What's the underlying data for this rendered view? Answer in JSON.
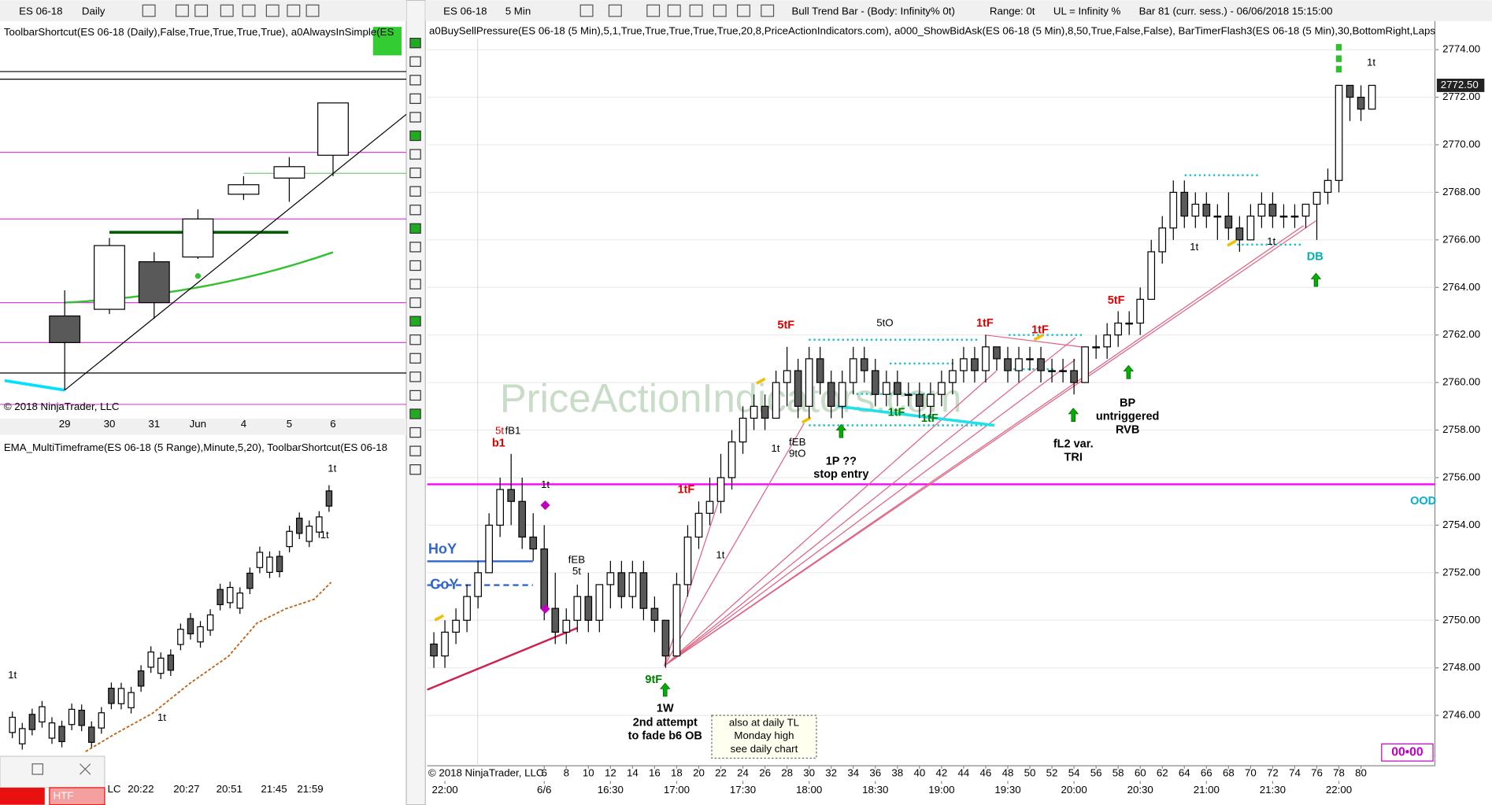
{
  "left_chart": {
    "symbol": "ES 06-18",
    "interval": "Daily",
    "indicators": "ToolbarShortcut(ES 06-18 (Daily),False,True,True,True,True),  a0AlwaysInSimple(ES",
    "copyright": "© 2018 NinjaTrader, LLC",
    "x_labels": [
      "29",
      "30",
      "31",
      "Jun",
      "4",
      "5",
      "6"
    ]
  },
  "range_chart": {
    "indicators": "EMA_MultiTimeframe(ES 06-18 (5 Range),Minute,5,20),  ToolbarShortcut(ES 06-18",
    "x_labels": [
      "LC",
      "20:22",
      "20:27",
      "20:51",
      "21:45",
      "21:59"
    ],
    "annotations": [
      "1t",
      "1t",
      "1t",
      "1t"
    ],
    "button": "HTF"
  },
  "chart_data": {
    "type": "candlestick",
    "symbol": "ES 06-18",
    "interval": "5 Min",
    "title": "Bull Trend Bar - (Body: Infinity%  0t)",
    "status": [
      "Range: 0t",
      "UL = Infinity %",
      "Bar 81 (curr. sess.) - 06/06/2018 15:15:00"
    ],
    "indicators": "a0BuySellPressure(ES 06-18 (5 Min),5,1,True,True,True,True,True,20,8,PriceActionIndicators.com),  a000_ShowBidAsk(ES 06-18 (5 Min),8,50,True,False,False),  BarTimerFlash3(ES 06-18 (5 Min),30,BottomRight,Laps",
    "copyright": "© 2018 NinjaTrader, LLC",
    "watermark": "PriceActionIndicators.com",
    "x": [
      -4,
      -3,
      -2,
      -1,
      0,
      1,
      2,
      3,
      4,
      5,
      6,
      7,
      8,
      9,
      10,
      11,
      12,
      13,
      14,
      15,
      16,
      17,
      18,
      19,
      20,
      21,
      22,
      23,
      24,
      25,
      26,
      27,
      28,
      29,
      30,
      31,
      32,
      33,
      34,
      35,
      36,
      37,
      38,
      39,
      40,
      41,
      42,
      43,
      44,
      45,
      46,
      47,
      48,
      49,
      50,
      51,
      52,
      53,
      54,
      55,
      56,
      57,
      58,
      59,
      60,
      61,
      62,
      63,
      64,
      65,
      66,
      67,
      68,
      69,
      70,
      71,
      72,
      73,
      74,
      75,
      76,
      77,
      78,
      79,
      80,
      81
    ],
    "ohlc": [
      [
        2749,
        2749.5,
        2748,
        2748.5
      ],
      [
        2748.5,
        2750,
        2748,
        2749.5
      ],
      [
        2749.5,
        2750.5,
        2749,
        2750
      ],
      [
        2750,
        2751.5,
        2749.5,
        2751
      ],
      [
        2751,
        2752.5,
        2750.5,
        2752
      ],
      [
        2752,
        2754.5,
        2752,
        2754
      ],
      [
        2754,
        2756,
        2753.5,
        2755.5
      ],
      [
        2755.5,
        2757,
        2754,
        2755
      ],
      [
        2755,
        2756,
        2753,
        2753.5
      ],
      [
        2753.5,
        2754.5,
        2752.5,
        2753
      ],
      [
        2753,
        2754,
        2750,
        2750.5
      ],
      [
        2750.5,
        2752,
        2749,
        2749.5
      ],
      [
        2749.5,
        2750.5,
        2749,
        2750
      ],
      [
        2750,
        2751.5,
        2749.5,
        2751
      ],
      [
        2751,
        2752,
        2749.5,
        2750
      ],
      [
        2750,
        2751.5,
        2749.5,
        2751.5
      ],
      [
        2751.5,
        2752.5,
        2750.5,
        2752
      ],
      [
        2752,
        2752.5,
        2750.5,
        2751
      ],
      [
        2751,
        2752.5,
        2750.5,
        2752
      ],
      [
        2752,
        2752.5,
        2750,
        2750.5
      ],
      [
        2750.5,
        2751,
        2749.5,
        2750
      ],
      [
        2750,
        2750,
        2748,
        2748.5
      ],
      [
        2748.5,
        2752,
        2748.5,
        2751.5
      ],
      [
        2751.5,
        2754,
        2751,
        2753.5
      ],
      [
        2753.5,
        2755,
        2753,
        2754.5
      ],
      [
        2754.5,
        2756,
        2754,
        2755
      ],
      [
        2755,
        2757,
        2754.5,
        2756
      ],
      [
        2756,
        2758,
        2755.5,
        2757.5
      ],
      [
        2757.5,
        2759,
        2757,
        2758.5
      ],
      [
        2758.5,
        2759.5,
        2758,
        2759
      ],
      [
        2759,
        2759.5,
        2758,
        2758.5
      ],
      [
        2758.5,
        2760.5,
        2758.5,
        2760
      ],
      [
        2760,
        2761.5,
        2759,
        2760.5
      ],
      [
        2760.5,
        2761,
        2758.5,
        2759
      ],
      [
        2759,
        2761.5,
        2758.5,
        2761
      ],
      [
        2761,
        2761.5,
        2759.5,
        2760
      ],
      [
        2760,
        2760.5,
        2758.5,
        2759
      ],
      [
        2759,
        2760.5,
        2758.5,
        2760
      ],
      [
        2760,
        2761.5,
        2759.5,
        2761
      ],
      [
        2761,
        2761.5,
        2760,
        2760.5
      ],
      [
        2760.5,
        2761,
        2759,
        2759.5
      ],
      [
        2759.5,
        2760.5,
        2759,
        2760
      ],
      [
        2760,
        2760.5,
        2759,
        2759.5
      ],
      [
        2759.5,
        2760,
        2759,
        2759.5
      ],
      [
        2759.5,
        2760,
        2758.5,
        2759
      ],
      [
        2759,
        2760,
        2758.5,
        2759.5
      ],
      [
        2759.5,
        2760.5,
        2759,
        2760
      ],
      [
        2760,
        2761,
        2759.5,
        2760.5
      ],
      [
        2760.5,
        2761.5,
        2760,
        2761
      ],
      [
        2761,
        2761.5,
        2760,
        2760.5
      ],
      [
        2760.5,
        2762,
        2760,
        2761.5
      ],
      [
        2761.5,
        2761.5,
        2760.5,
        2761
      ],
      [
        2761,
        2761.5,
        2760,
        2760.5
      ],
      [
        2760.5,
        2761.5,
        2760,
        2761
      ],
      [
        2761,
        2761.5,
        2760.5,
        2761
      ],
      [
        2761,
        2761.5,
        2760,
        2760.5
      ],
      [
        2760.5,
        2761,
        2760,
        2760.5
      ],
      [
        2760.5,
        2761,
        2760,
        2760.5
      ],
      [
        2760.5,
        2761,
        2759.5,
        2760
      ],
      [
        2760,
        2761.5,
        2760,
        2761.5
      ],
      [
        2761.5,
        2762,
        2761,
        2761.5
      ],
      [
        2761.5,
        2762.5,
        2761,
        2762
      ],
      [
        2762,
        2763,
        2761.5,
        2762.5
      ],
      [
        2762.5,
        2763,
        2762,
        2762.5
      ],
      [
        2762.5,
        2764,
        2762,
        2763.5
      ],
      [
        2763.5,
        2766,
        2763.5,
        2765.5
      ],
      [
        2765.5,
        2767,
        2765,
        2766.5
      ],
      [
        2766.5,
        2768.5,
        2766,
        2768
      ],
      [
        2768,
        2768.5,
        2766.5,
        2767
      ],
      [
        2767,
        2768,
        2766.5,
        2767.5
      ],
      [
        2767.5,
        2768,
        2766.5,
        2767
      ],
      [
        2767,
        2767.5,
        2766,
        2767
      ],
      [
        2767,
        2768,
        2766,
        2766.5
      ],
      [
        2766.5,
        2767,
        2765.5,
        2766
      ],
      [
        2766,
        2767.5,
        2766,
        2767
      ],
      [
        2767,
        2768,
        2766.5,
        2767.5
      ],
      [
        2767.5,
        2768,
        2766.5,
        2767
      ],
      [
        2767,
        2767.5,
        2766.5,
        2767
      ],
      [
        2767,
        2767.5,
        2766.5,
        2767
      ],
      [
        2767,
        2767.5,
        2766.5,
        2767.5
      ],
      [
        2767.5,
        2768,
        2766,
        2768
      ],
      [
        2768,
        2769,
        2767.5,
        2768.5
      ],
      [
        2768.5,
        2772.5,
        2768,
        2772.5
      ],
      [
        2772.5,
        2772.5,
        2771,
        2772
      ],
      [
        2772,
        2772.5,
        2771,
        2771.5
      ],
      [
        2771.5,
        2772.5,
        2771.5,
        2772.5
      ]
    ],
    "up_color": "#ffffff",
    "down_color": "#595959",
    "ylim": [
      2743.88,
      2774.48
    ],
    "yticks": [
      {
        "value": 2746,
        "label": "2746.00"
      },
      {
        "value": 2748,
        "label": "2748.00"
      },
      {
        "value": 2750,
        "label": "2750.00"
      },
      {
        "value": 2752,
        "label": "2752.00"
      },
      {
        "value": 2754,
        "label": "2754.00"
      },
      {
        "value": 2756,
        "label": "2756.00"
      },
      {
        "value": 2758,
        "label": "2758.00"
      },
      {
        "value": 2760,
        "label": "2760.00"
      },
      {
        "value": 2762,
        "label": "2762.00"
      },
      {
        "value": 2764,
        "label": "2764.00"
      },
      {
        "value": 2766,
        "label": "2766.00"
      },
      {
        "value": 2768,
        "label": "2768.00"
      },
      {
        "value": 2770,
        "label": "2770.00"
      },
      {
        "value": 2772,
        "label": "2772.00"
      },
      {
        "value": 2774,
        "label": "2774.00"
      }
    ],
    "xlim": [
      -4.6,
      86.7
    ],
    "xticks": [
      6,
      8,
      10,
      12,
      14,
      16,
      18,
      20,
      22,
      24,
      26,
      28,
      30,
      32,
      34,
      36,
      38,
      40,
      42,
      44,
      46,
      48,
      50,
      52,
      54,
      56,
      58,
      60,
      62,
      64,
      66,
      68,
      70,
      72,
      74,
      76,
      78,
      80
    ],
    "time_ticks": [
      {
        "value": -3,
        "label": "22:00"
      },
      {
        "value": 6,
        "label": "6/6"
      },
      {
        "value": 12,
        "label": "16:30"
      },
      {
        "value": 18,
        "label": "17:00"
      },
      {
        "value": 24,
        "label": "17:30"
      },
      {
        "value": 30,
        "label": "18:00"
      },
      {
        "value": 36,
        "label": "18:30"
      },
      {
        "value": 42,
        "label": "19:00"
      },
      {
        "value": 48,
        "label": "19:30"
      },
      {
        "value": 54,
        "label": "20:00"
      },
      {
        "value": 60,
        "label": "20:30"
      },
      {
        "value": 66,
        "label": "21:00"
      },
      {
        "value": 72,
        "label": "21:30"
      },
      {
        "value": 78,
        "label": "22:00"
      }
    ],
    "grid": true,
    "levels": [
      {
        "label": "OOD",
        "value": 2755.72,
        "color": "#ff00ff",
        "label_color": "#00b0d0"
      },
      {
        "label": "HoY",
        "value": 2752.48,
        "color": "#3366cc",
        "label_color": "#3366cc"
      },
      {
        "label": "CoY",
        "value": 2751.48,
        "color": "#3366cc",
        "label_color": "#3366cc"
      }
    ],
    "last_price": {
      "value": 2772.5,
      "label": "2772.50"
    },
    "timer": "00•00",
    "annotations": [
      {
        "text": "5t",
        "color": "#e00000"
      },
      {
        "text": "b1",
        "color": "#e00000"
      },
      {
        "text": "fB1",
        "color": "#000000"
      },
      {
        "text": "1t",
        "color": "#000000"
      },
      {
        "text": "fEB",
        "color": "#000000"
      },
      {
        "text": "5t",
        "color": "#000000"
      },
      {
        "text": "9tF",
        "color": "#008000"
      },
      {
        "text": "1W",
        "color": "#000000"
      },
      {
        "text": "2nd attempt",
        "color": "#000000"
      },
      {
        "text": "to fade b6 OB",
        "color": "#000000"
      },
      {
        "text": "also at daily TL",
        "color": "#000000"
      },
      {
        "text": "Monday high",
        "color": "#000000"
      },
      {
        "text": "see daily chart",
        "color": "#000000"
      },
      {
        "text": "1tF",
        "color": "#e00000"
      },
      {
        "text": "1t",
        "color": "#000000"
      },
      {
        "text": "5tF",
        "color": "#e00000"
      },
      {
        "text": "1t",
        "color": "#000000"
      },
      {
        "text": "fEB",
        "color": "#000000"
      },
      {
        "text": "9tO",
        "color": "#000000"
      },
      {
        "text": "1P ??",
        "color": "#000000"
      },
      {
        "text": "stop entry",
        "color": "#000000"
      },
      {
        "text": "5tO",
        "color": "#000000"
      },
      {
        "text": "1tF",
        "color": "#008000"
      },
      {
        "text": "1tF",
        "color": "#008000"
      },
      {
        "text": "1tF",
        "color": "#e00000"
      },
      {
        "text": "1tF",
        "color": "#e00000"
      },
      {
        "text": "fL2 var.",
        "color": "#000000"
      },
      {
        "text": "TRI",
        "color": "#000000"
      },
      {
        "text": "5tF",
        "color": "#e00000"
      },
      {
        "text": "BP",
        "color": "#000000"
      },
      {
        "text": "untriggered",
        "color": "#000000"
      },
      {
        "text": "RVB",
        "color": "#000000"
      },
      {
        "text": "1t",
        "color": "#000000"
      },
      {
        "text": "1t",
        "color": "#000000"
      },
      {
        "text": "DB",
        "color": "#00b0b0"
      },
      {
        "text": "1t",
        "color": "#000000"
      }
    ]
  }
}
